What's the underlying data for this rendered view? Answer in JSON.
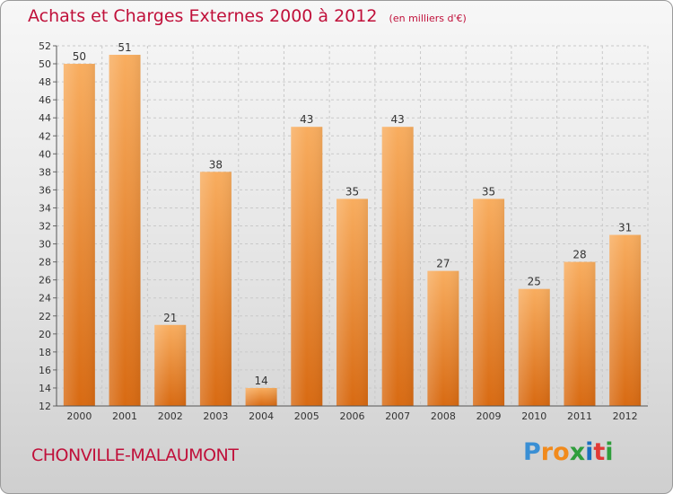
{
  "title": "Achats et Charges Externes 2000 à 2012",
  "unit": "(en milliers d'€)",
  "city": "CHONVILLE-MALAUMONT",
  "logo": {
    "letters": [
      "P",
      "r",
      "o",
      "x",
      "i",
      "t",
      "i"
    ],
    "colors": [
      "#3a8fd4",
      "#f18a1c",
      "#f18a1c",
      "#2f9e3c",
      "#1a6fbf",
      "#e13a37",
      "#2f9e3c"
    ]
  },
  "colors": {
    "accent": "#c0103a",
    "bar_light": "#f8ad5f",
    "bar_dark": "#d86a12"
  },
  "chart_data": {
    "type": "bar",
    "categories": [
      "2000",
      "2001",
      "2002",
      "2003",
      "2004",
      "2005",
      "2006",
      "2007",
      "2008",
      "2009",
      "2010",
      "2011",
      "2012"
    ],
    "values": [
      50,
      51,
      21,
      38,
      14,
      43,
      35,
      43,
      27,
      35,
      25,
      28,
      31
    ],
    "ylim": [
      12,
      52
    ],
    "yticks": [
      12,
      14,
      16,
      18,
      20,
      22,
      24,
      26,
      28,
      30,
      32,
      34,
      36,
      38,
      40,
      42,
      44,
      46,
      48,
      50,
      52
    ],
    "grid": true,
    "data_labels": true
  }
}
